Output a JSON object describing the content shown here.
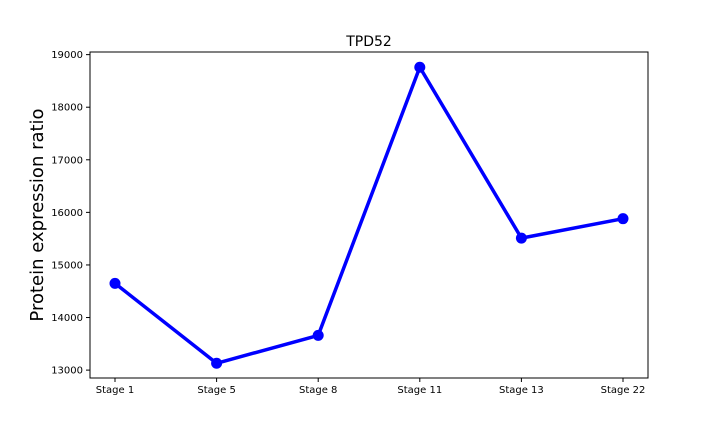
{
  "chart_data": {
    "type": "line",
    "title": "TPD52",
    "xlabel": "",
    "ylabel": "Protein expression ratio",
    "categories": [
      "Stage 1",
      "Stage 5",
      "Stage 8",
      "Stage 11",
      "Stage 13",
      "Stage 22"
    ],
    "series": [
      {
        "name": "TPD52",
        "values": [
          14650,
          13130,
          13660,
          18760,
          15510,
          15880
        ]
      }
    ],
    "ylim": [
      12850,
      19050
    ],
    "yticks": [
      13000,
      14000,
      15000,
      16000,
      17000,
      18000,
      19000
    ],
    "grid": false,
    "line_color": "#0000ff"
  }
}
